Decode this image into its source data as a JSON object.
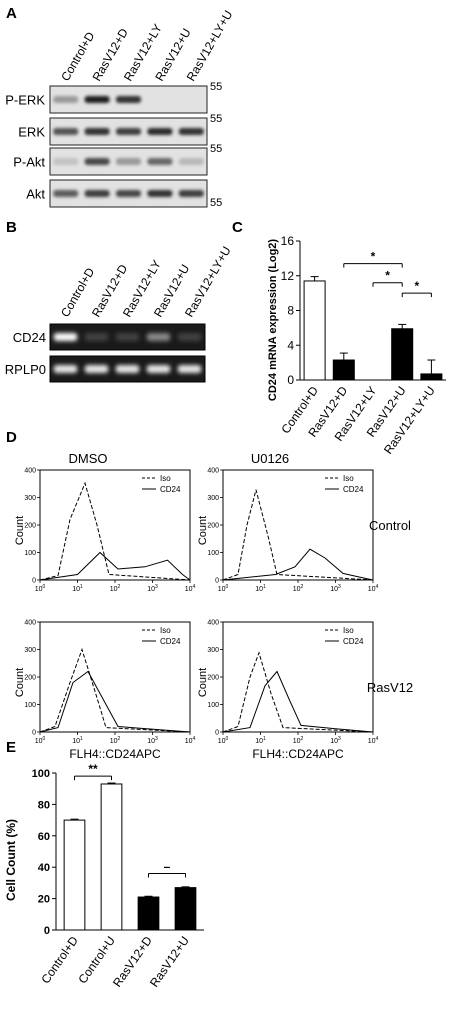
{
  "panels": {
    "a": "A",
    "b": "B",
    "c": "C",
    "d": "D",
    "e": "E"
  },
  "panel_a": {
    "lanes": [
      "Control+D",
      "RasV12+D",
      "RasV12+LY",
      "RasV12+U",
      "RasV12+LY+U"
    ],
    "blots": [
      {
        "label": "P-ERK",
        "marker": "55",
        "intensity": [
          0.35,
          0.95,
          0.85,
          0.0,
          0.0
        ]
      },
      {
        "label": "ERK",
        "marker": "55",
        "intensity": [
          0.7,
          0.85,
          0.8,
          0.9,
          0.85
        ]
      },
      {
        "label": "P-Akt",
        "marker": "55",
        "intensity": [
          0.15,
          0.75,
          0.35,
          0.6,
          0.2
        ]
      },
      {
        "label": "Akt",
        "marker": "55",
        "intensity": [
          0.65,
          0.8,
          0.75,
          0.85,
          0.8
        ]
      }
    ]
  },
  "panel_b": {
    "lanes": [
      "Control+D",
      "RasV12+D",
      "RasV12+LY",
      "RasV12+U",
      "RasV12+LY+U"
    ],
    "gels": [
      {
        "label": "CD24",
        "intensity": [
          1.0,
          0.12,
          0.12,
          0.45,
          0.12
        ]
      },
      {
        "label": "RPLP0",
        "intensity": [
          0.9,
          0.9,
          0.9,
          0.9,
          0.9
        ]
      }
    ]
  },
  "panel_c": {
    "chart_data": {
      "type": "bar",
      "categories": [
        "Control+D",
        "RasV12+D",
        "RasV12+LY",
        "RasV12+U",
        "RasV12+LY+U"
      ],
      "values": [
        11.4,
        2.3,
        0,
        5.9,
        0.7
      ],
      "errors": [
        0.5,
        0.8,
        0,
        0.5,
        1.6
      ],
      "fills": [
        "#ffffff",
        "#000000",
        "#000000",
        "#000000",
        "#000000"
      ],
      "ylabel": "CD24 mRNA expression (Log2)",
      "ylim": [
        0,
        16
      ],
      "yticks": [
        "0",
        "4",
        "8",
        "12",
        "16"
      ],
      "significance": [
        {
          "from": 1,
          "to": 3,
          "label": "*"
        },
        {
          "from": 2,
          "to": 3,
          "label": "*"
        },
        {
          "from": 3,
          "to": 4,
          "label": "*"
        }
      ]
    }
  },
  "panel_d": {
    "columns": [
      "DMSO",
      "U0126"
    ],
    "rows": [
      "Control",
      "RasV12"
    ],
    "legend": {
      "dashed": "Iso",
      "solid": "CD24"
    },
    "ylabel": "Count",
    "xlabel": "FLH4::CD24APC",
    "yticks": [
      "0",
      "100",
      "200",
      "300",
      "400"
    ],
    "xticks_exp": [
      "0",
      "1",
      "2",
      "3",
      "4"
    ]
  },
  "panel_e": {
    "chart_data": {
      "type": "bar",
      "categories": [
        "Control+D",
        "Control+U",
        "RasV12+D",
        "RasV12+U"
      ],
      "values": [
        70,
        93,
        21,
        27
      ],
      "errors": [
        0.6,
        0.6,
        0.5,
        0.5
      ],
      "fills": [
        "#ffffff",
        "#ffffff",
        "#000000",
        "#000000"
      ],
      "ylabel": "Cell Count (%)",
      "ylim": [
        0,
        100
      ],
      "yticks": [
        "0",
        "20",
        "40",
        "60",
        "80",
        "100"
      ],
      "significance": [
        {
          "from": 0,
          "to": 1,
          "label": "**"
        },
        {
          "from": 2,
          "to": 3,
          "label": "–"
        }
      ]
    }
  }
}
